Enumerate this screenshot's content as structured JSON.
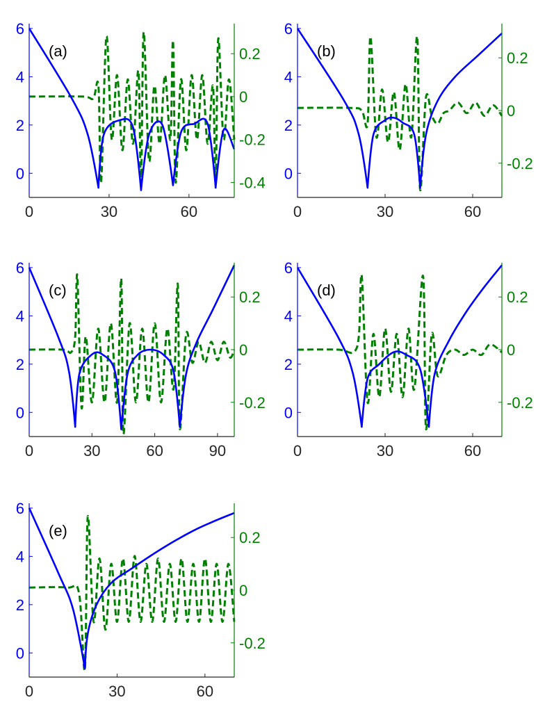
{
  "colors": {
    "left_axis": "#0000ff",
    "right_axis": "#008000",
    "x_axis": "#262626",
    "solid_series": "#0000ff",
    "dashed_series": "#008000"
  },
  "chart_data": [
    {
      "type": "line",
      "label": "(a)",
      "xlim": [
        0,
        77
      ],
      "xticks": [
        "0",
        "30",
        "60"
      ],
      "xtick_values": [
        0,
        30,
        60
      ],
      "ylim_left": [
        -1,
        6.2
      ],
      "yticks_left": [
        "6",
        "4",
        "2",
        "0"
      ],
      "ytick_values_left": [
        6,
        4,
        2,
        0
      ],
      "ylim_right": [
        -0.47,
        0.34
      ],
      "yticks_right": [
        "0.2",
        "0",
        "-0.2",
        "-0.4"
      ],
      "ytick_values_right": [
        0.2,
        0,
        -0.2,
        -0.4
      ],
      "dips": [
        26,
        42,
        54,
        70
      ],
      "solid": {
        "x": [
          0,
          16,
          22,
          26,
          28,
          34,
          39,
          42,
          45,
          50,
          54,
          57,
          62,
          67,
          70,
          73,
          77
        ],
        "y": [
          6,
          3.1,
          1.6,
          -0.6,
          1.6,
          2.2,
          1.9,
          -0.7,
          1.6,
          2.0,
          -0.5,
          1.7,
          2.05,
          2.05,
          -0.6,
          1.8,
          1.0
        ]
      },
      "dashed": {
        "x": [
          0,
          20,
          24,
          26,
          27,
          29,
          31,
          33,
          35,
          37,
          39,
          41,
          42,
          43,
          45,
          47,
          49,
          51,
          53,
          54,
          55,
          57,
          59,
          61,
          63,
          65,
          67,
          69,
          70,
          71,
          73,
          75,
          77
        ],
        "y": [
          0,
          0,
          -0.01,
          0.05,
          -0.4,
          0.28,
          -0.2,
          0.1,
          -0.25,
          0.08,
          -0.22,
          0.12,
          -0.4,
          0.3,
          -0.3,
          0.05,
          -0.22,
          0.1,
          -0.2,
          0.26,
          -0.4,
          0.08,
          -0.25,
          0.1,
          -0.2,
          0.1,
          -0.22,
          0.05,
          -0.4,
          0.27,
          -0.2,
          0.08,
          -0.2
        ]
      }
    },
    {
      "type": "line",
      "label": "(b)",
      "xlim": [
        0,
        70
      ],
      "xticks": [
        "0",
        "30",
        "60"
      ],
      "xtick_values": [
        0,
        30,
        60
      ],
      "ylim_left": [
        -1,
        6.2
      ],
      "yticks_left": [
        "6",
        "4",
        "2",
        "0"
      ],
      "ytick_values_left": [
        6,
        4,
        2,
        0
      ],
      "ylim_right": [
        -0.33,
        0.33
      ],
      "yticks_right": [
        "0.2",
        "0",
        "-0.2"
      ],
      "ytick_values_right": [
        0.2,
        0,
        -0.2
      ],
      "dips": [
        24,
        42
      ],
      "solid": {
        "x": [
          0,
          16,
          21,
          24,
          26,
          30,
          33,
          36,
          40,
          42,
          44,
          48,
          54,
          62,
          70
        ],
        "y": [
          6,
          3.0,
          1.6,
          -0.6,
          1.6,
          2.2,
          2.3,
          2.1,
          1.6,
          -0.6,
          1.6,
          3.0,
          4.0,
          4.9,
          5.8
        ]
      },
      "dashed": {
        "x": [
          0,
          18,
          22,
          24,
          25,
          27,
          29,
          31,
          33,
          35,
          37,
          39,
          41,
          42,
          44,
          46,
          48,
          50,
          52,
          55,
          58,
          61,
          64,
          67,
          70
        ],
        "y": [
          0.01,
          0.01,
          0.0,
          -0.05,
          0.28,
          -0.1,
          0.08,
          -0.12,
          0.07,
          -0.15,
          0.1,
          -0.1,
          0.28,
          -0.3,
          0.05,
          -0.02,
          -0.05,
          -0.01,
          0.0,
          0.03,
          -0.01,
          0.03,
          -0.02,
          0.02,
          -0.02
        ]
      }
    },
    {
      "type": "line",
      "label": "(c)",
      "xlim": [
        0,
        98
      ],
      "xticks": [
        "0",
        "30",
        "60",
        "90"
      ],
      "xtick_values": [
        0,
        30,
        60,
        90
      ],
      "ylim_left": [
        -1,
        6.2
      ],
      "yticks_left": [
        "6",
        "4",
        "2",
        "0"
      ],
      "ytick_values_left": [
        6,
        4,
        2,
        0
      ],
      "ylim_right": [
        -0.33,
        0.33
      ],
      "yticks_right": [
        "0.2",
        "0",
        "-0.2"
      ],
      "ytick_values_right": [
        0.2,
        0,
        -0.2
      ],
      "dips": [
        22,
        44,
        72
      ],
      "solid": {
        "x": [
          0,
          14,
          19,
          22,
          24,
          30,
          35,
          41,
          44,
          47,
          52,
          58,
          64,
          69,
          72,
          75,
          80,
          88,
          98
        ],
        "y": [
          6,
          3.1,
          1.7,
          -0.6,
          1.6,
          2.4,
          2.4,
          1.7,
          -0.7,
          1.6,
          2.4,
          2.6,
          2.4,
          1.7,
          -0.6,
          1.6,
          2.9,
          4.3,
          6.1
        ]
      },
      "dashed": {
        "x": [
          0,
          16,
          20,
          22,
          23,
          25,
          27,
          30,
          33,
          36,
          39,
          42,
          44,
          45,
          48,
          51,
          54,
          57,
          60,
          63,
          66,
          69,
          71,
          72,
          75,
          78,
          81,
          84,
          87,
          90,
          93,
          96,
          98
        ],
        "y": [
          0,
          0,
          -0.01,
          0.05,
          0.28,
          -0.22,
          0.05,
          -0.2,
          0.08,
          -0.2,
          0.1,
          -0.2,
          0.27,
          -0.32,
          0.1,
          -0.2,
          0.08,
          -0.2,
          0.1,
          -0.2,
          0.08,
          -0.15,
          0.25,
          -0.3,
          0.06,
          -0.05,
          0.03,
          -0.05,
          0.03,
          -0.04,
          0.03,
          -0.03,
          0.0
        ]
      }
    },
    {
      "type": "line",
      "label": "(d)",
      "xlim": [
        0,
        70
      ],
      "xticks": [
        "0",
        "30",
        "60"
      ],
      "xtick_values": [
        0,
        30,
        60
      ],
      "ylim_left": [
        -1,
        6.2
      ],
      "yticks_left": [
        "6",
        "4",
        "2",
        "0"
      ],
      "ytick_values_left": [
        6,
        4,
        2,
        0
      ],
      "ylim_right": [
        -0.33,
        0.33
      ],
      "yticks_right": [
        "0.2",
        "0",
        "-0.2"
      ],
      "ytick_values_right": [
        0.2,
        0,
        -0.2
      ],
      "dips": [
        22,
        45
      ],
      "solid": {
        "x": [
          0,
          14,
          19,
          22,
          24,
          28,
          33,
          37,
          42,
          45,
          47,
          52,
          58,
          64,
          70
        ],
        "y": [
          6,
          3.1,
          1.6,
          -0.6,
          1.4,
          2.0,
          2.5,
          2.4,
          1.8,
          -0.6,
          1.6,
          3.0,
          4.2,
          5.2,
          6.1
        ]
      },
      "dashed": {
        "x": [
          0,
          14,
          19,
          21,
          22,
          24,
          26,
          28,
          30,
          32,
          34,
          36,
          38,
          40,
          43,
          44,
          46,
          48,
          51,
          54,
          57,
          60,
          63,
          66,
          70
        ],
        "y": [
          0,
          0,
          -0.01,
          0.05,
          0.28,
          -0.2,
          0.06,
          -0.18,
          0.08,
          -0.16,
          0.06,
          -0.18,
          0.08,
          -0.15,
          0.28,
          -0.3,
          0.06,
          -0.1,
          -0.02,
          0.0,
          -0.02,
          0.0,
          -0.02,
          0.02,
          -0.01
        ]
      }
    },
    {
      "type": "line",
      "label": "(e)",
      "xlim": [
        0,
        70
      ],
      "xticks": [
        "0",
        "30",
        "60"
      ],
      "xtick_values": [
        0,
        30,
        60
      ],
      "ylim_left": [
        -1,
        6.2
      ],
      "yticks_left": [
        "6",
        "4",
        "2",
        "0"
      ],
      "ytick_values_left": [
        6,
        4,
        2,
        0
      ],
      "ylim_right": [
        -0.33,
        0.33
      ],
      "yticks_right": [
        "0.2",
        "0",
        "-0.2"
      ],
      "ytick_values_right": [
        0.2,
        0,
        -0.2
      ],
      "dips": [
        19
      ],
      "solid": {
        "x": [
          0,
          10,
          15,
          19,
          20,
          23,
          28,
          35,
          45,
          55,
          62,
          70
        ],
        "y": [
          6,
          3.3,
          1.8,
          -0.65,
          0.8,
          2.0,
          2.9,
          3.5,
          4.3,
          5.0,
          5.4,
          5.8
        ]
      },
      "dashed": {
        "x": [
          0,
          13,
          17,
          19,
          20,
          22,
          24,
          26,
          28,
          30,
          32,
          34,
          36,
          38,
          40,
          42,
          44,
          46,
          48,
          50,
          52,
          54,
          56,
          58,
          60,
          62,
          64,
          66,
          68,
          70
        ],
        "y": [
          0.01,
          0.01,
          -0.01,
          -0.3,
          0.28,
          -0.12,
          0.12,
          -0.15,
          0.1,
          -0.12,
          0.12,
          -0.12,
          0.13,
          -0.12,
          0.1,
          -0.12,
          0.12,
          -0.12,
          0.1,
          -0.12,
          0.12,
          -0.12,
          0.1,
          -0.12,
          0.12,
          -0.12,
          0.1,
          -0.12,
          0.1,
          -0.12
        ]
      }
    }
  ]
}
